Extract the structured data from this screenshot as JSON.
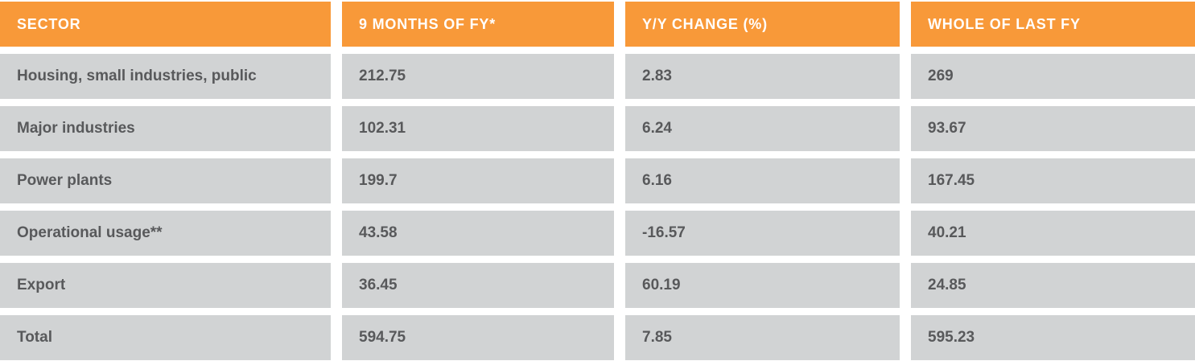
{
  "colors": {
    "header_bg": "#F89939",
    "header_text": "#FFFFFF",
    "cell_bg": "#D1D3D4",
    "cell_text": "#58595B",
    "page_bg": "#FFFFFF"
  },
  "table": {
    "columns": [
      {
        "label": "SECTOR"
      },
      {
        "label": "9 MONTHS OF FY*"
      },
      {
        "label": "Y/Y CHANGE (%)"
      },
      {
        "label": "WHOLE OF LAST FY"
      }
    ],
    "rows": [
      {
        "cells": [
          "Housing, small industries, public",
          "212.75",
          "2.83",
          "269"
        ]
      },
      {
        "cells": [
          "Major industries",
          "102.31",
          "6.24",
          "93.67"
        ]
      },
      {
        "cells": [
          "Power plants",
          "199.7",
          "6.16",
          "167.45"
        ]
      },
      {
        "cells": [
          "Operational usage**",
          "43.58",
          "-16.57",
          "40.21"
        ]
      },
      {
        "cells": [
          "Export",
          "36.45",
          "60.19",
          "24.85"
        ]
      },
      {
        "cells": [
          "Total",
          "594.75",
          "7.85",
          "595.23"
        ]
      }
    ]
  },
  "chart_data": {
    "type": "table",
    "title": "",
    "columns": [
      "SECTOR",
      "9 MONTHS OF FY*",
      "Y/Y CHANGE (%)",
      "WHOLE OF LAST FY"
    ],
    "rows": [
      [
        "Housing, small industries, public",
        212.75,
        2.83,
        269
      ],
      [
        "Major industries",
        102.31,
        6.24,
        93.67
      ],
      [
        "Power plants",
        199.7,
        6.16,
        167.45
      ],
      [
        "Operational usage**",
        43.58,
        -16.57,
        40.21
      ],
      [
        "Export",
        36.45,
        60.19,
        24.85
      ],
      [
        "Total",
        594.75,
        7.85,
        595.23
      ]
    ]
  }
}
